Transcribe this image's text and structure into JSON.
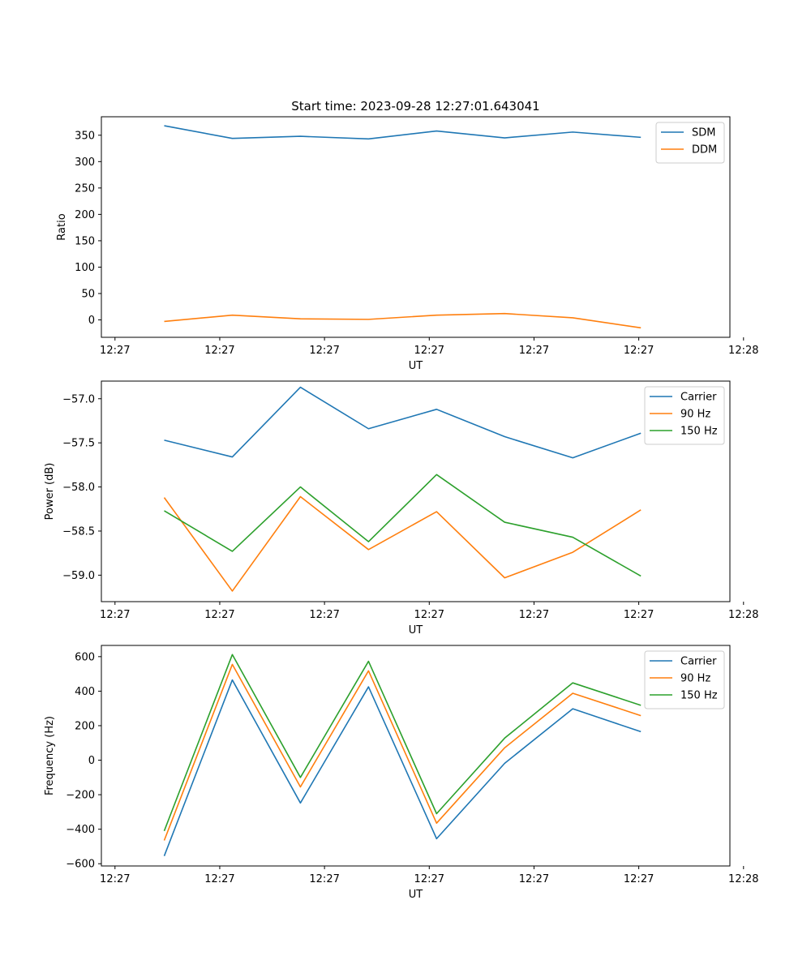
{
  "chart_data": [
    {
      "type": "line",
      "title": "Start time: 2023-09-28 12:27:01.643041",
      "xlabel": "UT",
      "ylabel": "Ratio",
      "x": [
        0.6,
        1.25,
        1.9,
        2.55,
        3.2,
        3.85,
        4.5,
        5.15
      ],
      "xlim": [
        0,
        6.0
      ],
      "xticks": [
        0.13,
        1.13,
        2.13,
        3.13,
        4.13,
        5.13,
        6.13
      ],
      "xtick_labels": [
        "12:27",
        "12:27",
        "12:27",
        "12:27",
        "12:27",
        "12:27",
        "12:28"
      ],
      "ylim": [
        -33,
        385
      ],
      "yticks": [
        0,
        50,
        100,
        150,
        200,
        250,
        300,
        350
      ],
      "ytick_labels": [
        "0",
        "50",
        "100",
        "150",
        "200",
        "250",
        "300",
        "350"
      ],
      "legend": "top-right",
      "series": [
        {
          "name": "SDM",
          "color": "#1f77b4",
          "values": [
            368,
            344,
            348,
            343,
            358,
            345,
            356,
            346
          ]
        },
        {
          "name": "DDM",
          "color": "#ff7f0e",
          "values": [
            -3,
            9,
            2,
            1,
            9,
            12,
            4,
            -15
          ]
        }
      ]
    },
    {
      "type": "line",
      "title": "",
      "xlabel": "UT",
      "ylabel": "Power (dB)",
      "x": [
        0.6,
        1.25,
        1.9,
        2.55,
        3.2,
        3.85,
        4.5,
        5.15
      ],
      "xlim": [
        0,
        6.0
      ],
      "xticks": [
        0.13,
        1.13,
        2.13,
        3.13,
        4.13,
        5.13,
        6.13
      ],
      "xtick_labels": [
        "12:27",
        "12:27",
        "12:27",
        "12:27",
        "12:27",
        "12:27",
        "12:28"
      ],
      "ylim": [
        -59.3,
        -56.8
      ],
      "yticks": [
        -59.0,
        -58.5,
        -58.0,
        -57.5,
        -57.0
      ],
      "ytick_labels": [
        "−59.0",
        "−58.5",
        "−58.0",
        "−57.5",
        "−57.0"
      ],
      "legend": "top-right",
      "series": [
        {
          "name": "Carrier",
          "color": "#1f77b4",
          "values": [
            -57.47,
            -57.66,
            -56.87,
            -57.34,
            -57.12,
            -57.43,
            -57.67,
            -57.39
          ]
        },
        {
          "name": "90 Hz",
          "color": "#ff7f0e",
          "values": [
            -58.12,
            -59.18,
            -58.11,
            -58.71,
            -58.28,
            -59.03,
            -58.74,
            -58.26
          ]
        },
        {
          "name": "150 Hz",
          "color": "#2ca02c",
          "values": [
            -58.27,
            -58.73,
            -58.0,
            -58.62,
            -57.86,
            -58.4,
            -58.57,
            -59.01
          ]
        }
      ]
    },
    {
      "type": "line",
      "title": "",
      "xlabel": "UT",
      "ylabel": "Frequency (Hz)",
      "x": [
        0.6,
        1.25,
        1.9,
        2.55,
        3.2,
        3.85,
        4.5,
        5.15
      ],
      "xlim": [
        0,
        6.0
      ],
      "xticks": [
        0.13,
        1.13,
        2.13,
        3.13,
        4.13,
        5.13,
        6.13
      ],
      "xtick_labels": [
        "12:27",
        "12:27",
        "12:27",
        "12:27",
        "12:27",
        "12:27",
        "12:28"
      ],
      "ylim": [
        -613,
        665
      ],
      "yticks": [
        -600,
        -400,
        -200,
        0,
        200,
        400,
        600
      ],
      "ytick_labels": [
        "−600",
        "−400",
        "−200",
        "0",
        "200",
        "400",
        "600"
      ],
      "legend": "top-right",
      "series": [
        {
          "name": "Carrier",
          "color": "#1f77b4",
          "values": [
            -555,
            465,
            -248,
            425,
            -455,
            -18,
            298,
            165
          ]
        },
        {
          "name": "90 Hz",
          "color": "#ff7f0e",
          "values": [
            -465,
            555,
            -155,
            518,
            -365,
            72,
            388,
            258
          ]
        },
        {
          "name": "150 Hz",
          "color": "#2ca02c",
          "values": [
            -410,
            612,
            -100,
            573,
            -310,
            128,
            448,
            318
          ]
        }
      ]
    }
  ]
}
